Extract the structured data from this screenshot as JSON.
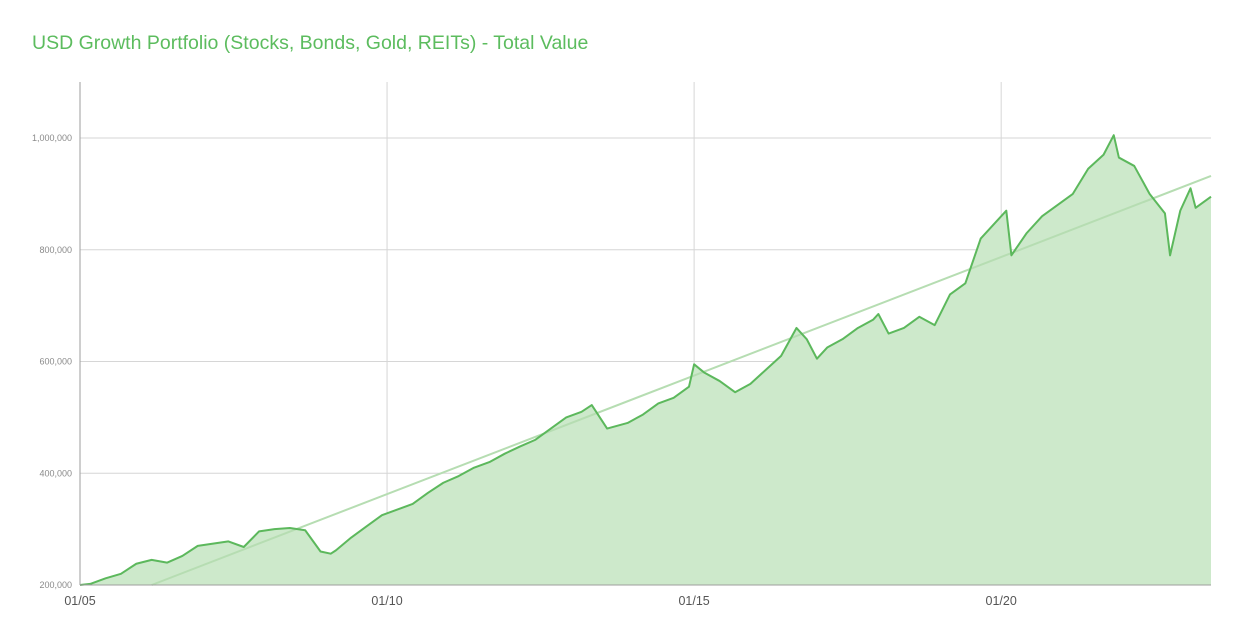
{
  "chart_data": {
    "type": "area",
    "title": "USD Growth Portfolio (Stocks, Bonds, Gold, REITs) - Total Value",
    "xlabel": "",
    "ylabel": "",
    "xlim": [
      "2005-01",
      "2023-06"
    ],
    "ylim": [
      200000,
      1100000
    ],
    "y_ticks": [
      200000,
      400000,
      600000,
      800000,
      1000000
    ],
    "y_tick_labels": [
      "200,000",
      "400,000",
      "600,000",
      "800,000",
      "1,000,000"
    ],
    "x_ticks": [
      "2005-01",
      "2010-01",
      "2015-01",
      "2020-01"
    ],
    "x_tick_labels": [
      "01/05",
      "01/10",
      "01/15",
      "01/20"
    ],
    "grid": true,
    "legend": "none",
    "series": [
      {
        "points": [
          [
            "2005-01",
            200000
          ],
          [
            "2005-03",
            202000
          ],
          [
            "2005-06",
            212000
          ],
          [
            "2005-09",
            220000
          ],
          [
            "2005-12",
            238000
          ],
          [
            "2006-03",
            245000
          ],
          [
            "2006-06",
            240000
          ],
          [
            "2006-09",
            252000
          ],
          [
            "2006-12",
            270000
          ],
          [
            "2007-03",
            274000
          ],
          [
            "2007-06",
            278000
          ],
          [
            "2007-09",
            268000
          ],
          [
            "2007-12",
            296000
          ],
          [
            "2008-03",
            300000
          ],
          [
            "2008-06",
            302000
          ],
          [
            "2008-09",
            298000
          ],
          [
            "2008-12",
            260000
          ],
          [
            "2009-02",
            256000
          ],
          [
            "2009-03",
            262000
          ],
          [
            "2009-06",
            285000
          ],
          [
            "2009-09",
            305000
          ],
          [
            "2009-12",
            325000
          ],
          [
            "2010-03",
            335000
          ],
          [
            "2010-06",
            345000
          ],
          [
            "2010-09",
            365000
          ],
          [
            "2010-12",
            383000
          ],
          [
            "2011-03",
            395000
          ],
          [
            "2011-06",
            410000
          ],
          [
            "2011-09",
            420000
          ],
          [
            "2011-12",
            435000
          ],
          [
            "2012-03",
            448000
          ],
          [
            "2012-06",
            460000
          ],
          [
            "2012-09",
            480000
          ],
          [
            "2012-12",
            500000
          ],
          [
            "2013-03",
            510000
          ],
          [
            "2013-05",
            522000
          ],
          [
            "2013-08",
            480000
          ],
          [
            "2013-12",
            490000
          ],
          [
            "2014-03",
            505000
          ],
          [
            "2014-06",
            525000
          ],
          [
            "2014-09",
            535000
          ],
          [
            "2014-12",
            555000
          ],
          [
            "2015-01",
            595000
          ],
          [
            "2015-03",
            580000
          ],
          [
            "2015-06",
            565000
          ],
          [
            "2015-09",
            545000
          ],
          [
            "2015-12",
            560000
          ],
          [
            "2016-03",
            585000
          ],
          [
            "2016-06",
            610000
          ],
          [
            "2016-09",
            660000
          ],
          [
            "2016-11",
            640000
          ],
          [
            "2017-01",
            605000
          ],
          [
            "2017-03",
            625000
          ],
          [
            "2017-06",
            640000
          ],
          [
            "2017-09",
            660000
          ],
          [
            "2017-12",
            675000
          ],
          [
            "2018-01",
            685000
          ],
          [
            "2018-03",
            650000
          ],
          [
            "2018-06",
            660000
          ],
          [
            "2018-09",
            680000
          ],
          [
            "2018-12",
            665000
          ],
          [
            "2019-03",
            720000
          ],
          [
            "2019-06",
            740000
          ],
          [
            "2019-09",
            820000
          ],
          [
            "2019-12",
            850000
          ],
          [
            "2020-02",
            870000
          ],
          [
            "2020-03",
            790000
          ],
          [
            "2020-06",
            830000
          ],
          [
            "2020-09",
            860000
          ],
          [
            "2020-12",
            880000
          ],
          [
            "2021-03",
            900000
          ],
          [
            "2021-06",
            945000
          ],
          [
            "2021-09",
            970000
          ],
          [
            "2021-11",
            1005000
          ],
          [
            "2021-12",
            965000
          ],
          [
            "2022-03",
            950000
          ],
          [
            "2022-06",
            900000
          ],
          [
            "2022-09",
            865000
          ],
          [
            "2022-10",
            790000
          ],
          [
            "2022-12",
            870000
          ],
          [
            "2023-02",
            910000
          ],
          [
            "2023-03",
            875000
          ],
          [
            "2023-06",
            895000
          ]
        ]
      },
      {
        "type": "trendline",
        "points": [
          [
            "2006-03",
            200000
          ],
          [
            "2023-06",
            932000
          ]
        ]
      }
    ],
    "colors": {
      "title": "#5cbc5e",
      "line": "#5cb85c",
      "fill": "#cde9cb",
      "trend": "#b6ddb2",
      "grid": "#d6d6d6",
      "tick_text": "#8a8a8a"
    }
  }
}
